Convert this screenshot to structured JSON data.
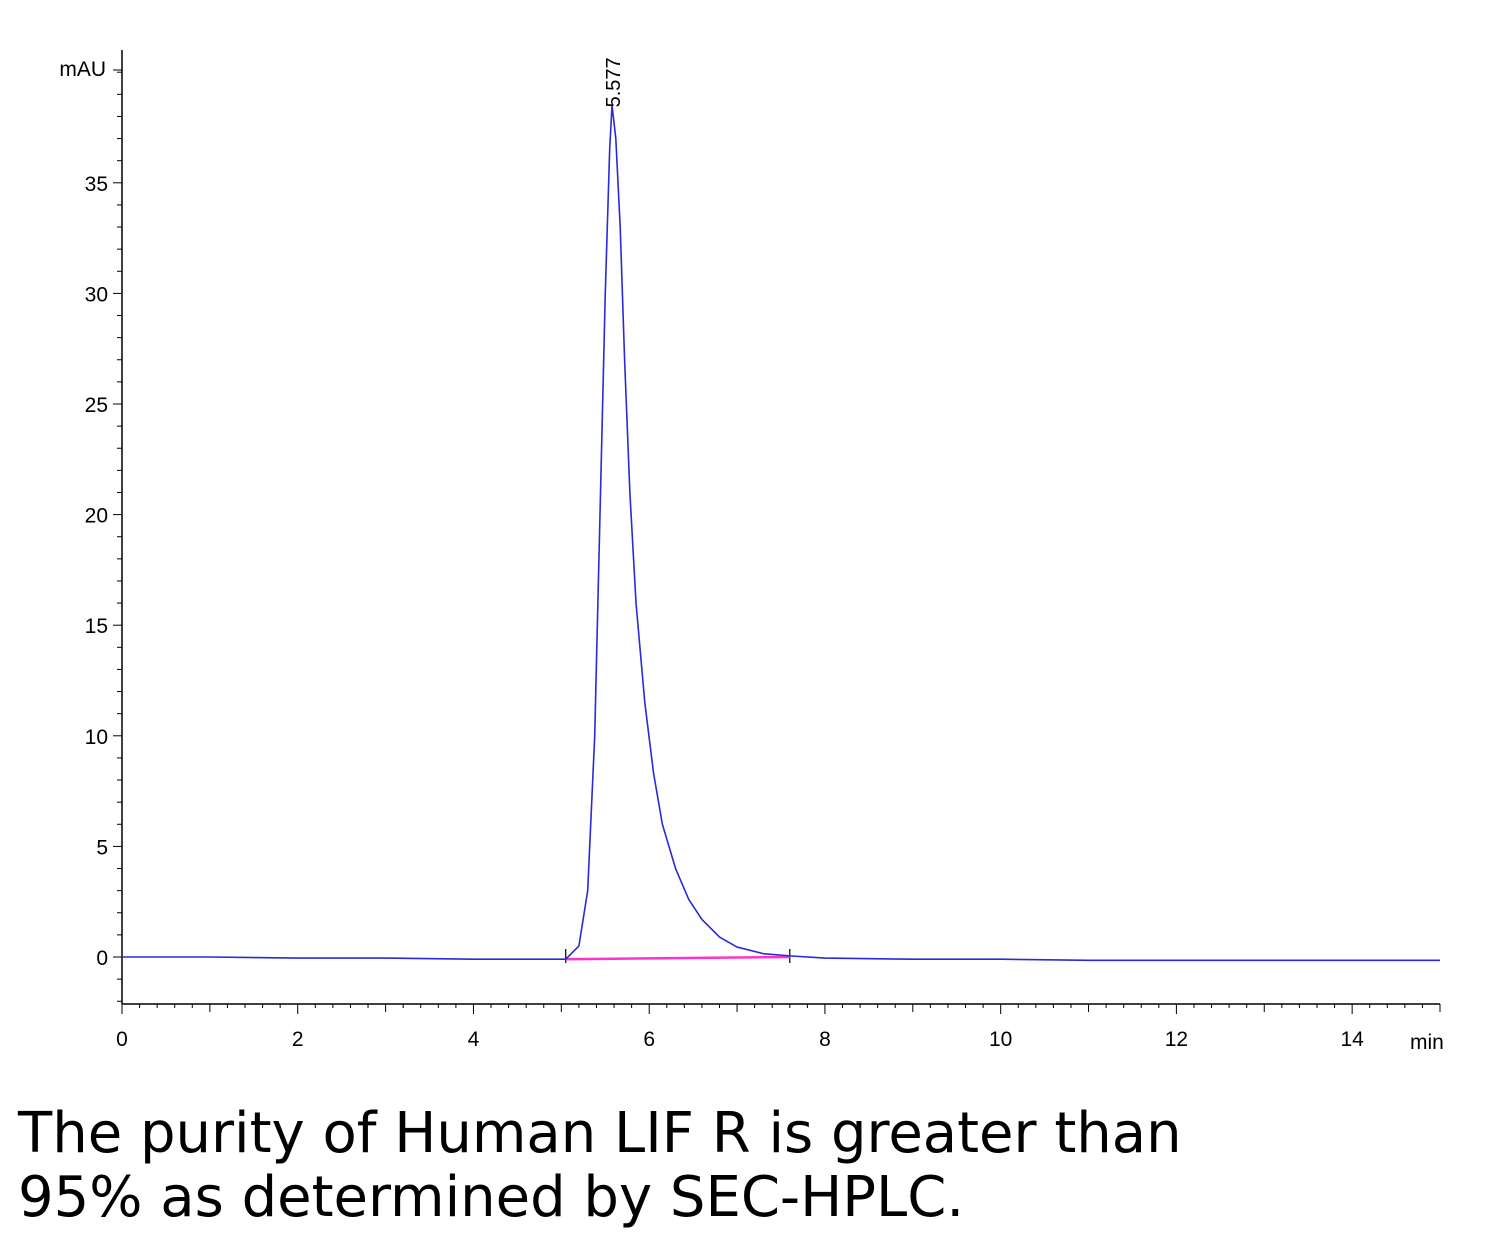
{
  "chart_data": {
    "type": "line",
    "title": "",
    "xlabel": "min",
    "ylabel": "mAU",
    "xlim": [
      0,
      15
    ],
    "ylim": [
      -2,
      41
    ],
    "x_ticks": [
      0,
      2,
      4,
      6,
      8,
      10,
      12,
      14
    ],
    "y_ticks": [
      0,
      5,
      10,
      15,
      20,
      25,
      30,
      35
    ],
    "grid": false,
    "series": [
      {
        "color": "#2a2ad8",
        "x": [
          0,
          1,
          2,
          3,
          4,
          4.8,
          5.05,
          5.2,
          5.3,
          5.38,
          5.44,
          5.5,
          5.55,
          5.577,
          5.62,
          5.67,
          5.72,
          5.78,
          5.85,
          5.95,
          6.05,
          6.15,
          6.3,
          6.45,
          6.6,
          6.8,
          7.0,
          7.3,
          7.6,
          8.0,
          9.0,
          10.0,
          11.0,
          12.0,
          13.0,
          14.0,
          15.0
        ],
        "y": [
          0.0,
          0.0,
          -0.05,
          -0.05,
          -0.1,
          -0.1,
          -0.1,
          0.5,
          3.0,
          10.0,
          20.0,
          30.0,
          36.5,
          38.5,
          37.0,
          33.0,
          27.0,
          21.0,
          16.0,
          11.5,
          8.3,
          6.0,
          4.0,
          2.6,
          1.7,
          0.9,
          0.45,
          0.15,
          0.05,
          -0.05,
          -0.1,
          -0.1,
          -0.15,
          -0.15,
          -0.15,
          -0.15,
          -0.15
        ]
      }
    ],
    "baseline": {
      "color": "#ff33cc",
      "x": [
        5.05,
        7.6
      ],
      "y": [
        -0.1,
        0.0
      ]
    },
    "peak_markers": [
      5.05,
      7.6
    ],
    "annotations": [
      {
        "text": "5.577",
        "x": 5.577,
        "y": 38.5
      }
    ]
  },
  "caption": {
    "line1": "The purity of Human LIF R is greater than",
    "line2": "95% as determined by SEC-HPLC."
  }
}
